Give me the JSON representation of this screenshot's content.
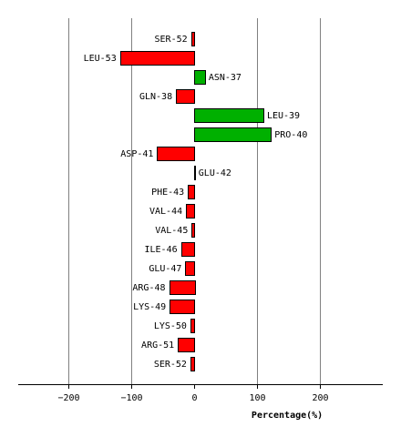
{
  "chart_data": {
    "type": "bar",
    "orientation": "horizontal",
    "xlabel": "Percentage(%)",
    "xlim": [
      -280,
      300
    ],
    "xticks": [
      -200,
      -100,
      0,
      100,
      200
    ],
    "xtick_labels": [
      "−200",
      "−100",
      "0",
      "100",
      "200"
    ],
    "grid": true,
    "colors": {
      "negative": "#ff0000",
      "positive": "#00b000"
    },
    "categories": [
      "SER-52",
      "LEU-53",
      "ASN-37",
      "GLN-38",
      "LEU-39",
      "PRO-40",
      "ASP-41",
      "GLU-42",
      "PHE-43",
      "VAL-44",
      "VAL-45",
      "ILE-46",
      "GLU-47",
      "ARG-48",
      "LYS-49",
      "LYS-50",
      "ARG-51",
      "SER-52"
    ],
    "values": [
      -5,
      -118,
      17,
      -29,
      110,
      122,
      -59,
      1,
      -10,
      -13,
      -4,
      -21,
      -14,
      -40,
      -39,
      -6,
      -26,
      -6
    ]
  }
}
